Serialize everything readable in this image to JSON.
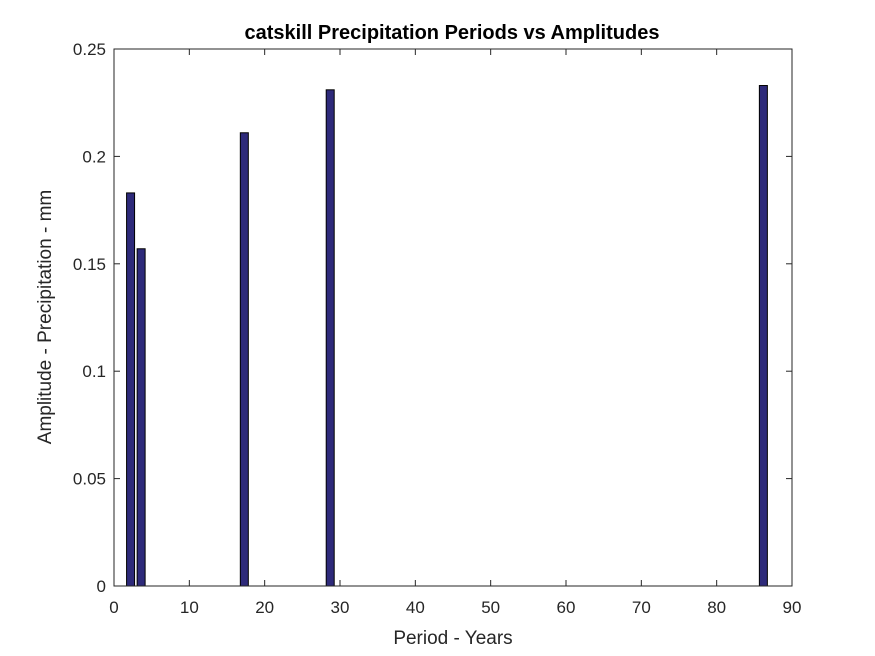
{
  "chart_data": {
    "type": "bar",
    "title": "catskill Precipitation Periods vs Amplitudes",
    "xlabel": "Period - Years",
    "ylabel": "Amplitude - Precipitation - mm",
    "xlim": [
      0,
      90
    ],
    "ylim": [
      0,
      0.25
    ],
    "x_ticks": [
      "0",
      "10",
      "20",
      "30",
      "40",
      "50",
      "60",
      "70",
      "80",
      "90"
    ],
    "y_ticks": [
      "0",
      "0.05",
      "0.1",
      "0.15",
      "0.2",
      "0.25"
    ],
    "grid": false,
    "bar_color": "#2e2a7a",
    "bar_edge_color": "#000000",
    "points": [
      {
        "x": 2.2,
        "y": 0.183
      },
      {
        "x": 3.6,
        "y": 0.157
      },
      {
        "x": 17.3,
        "y": 0.211
      },
      {
        "x": 28.7,
        "y": 0.231
      },
      {
        "x": 86.2,
        "y": 0.233
      }
    ]
  }
}
